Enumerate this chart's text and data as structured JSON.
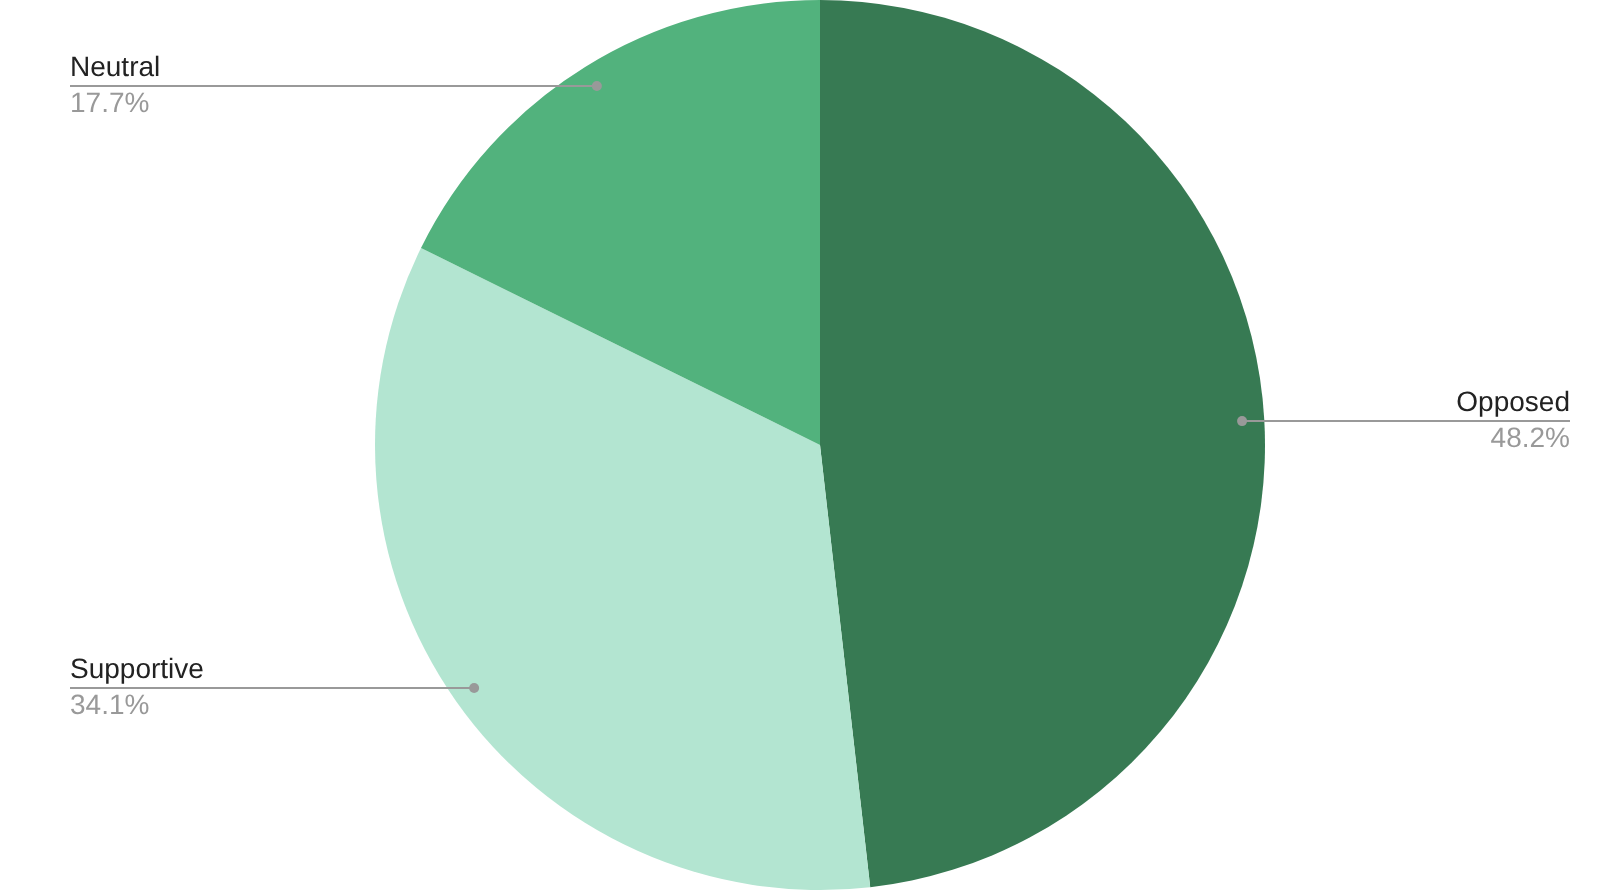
{
  "chart_data": {
    "type": "pie",
    "categories": [
      "Opposed",
      "Supportive",
      "Neutral"
    ],
    "values": [
      48.2,
      34.1,
      17.7
    ],
    "value_labels": [
      "48.2%",
      "34.1%",
      "17.7%"
    ],
    "colors": [
      "#377a53",
      "#b3e5d1",
      "#52b27d"
    ],
    "legend": false
  }
}
